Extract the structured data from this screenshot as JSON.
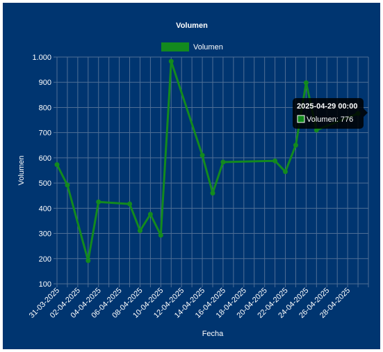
{
  "colors": {
    "background": "#003570",
    "series": "#138a1e",
    "grid": "#4f6f96",
    "text": "#ffffff",
    "tooltip_bg": "#000000"
  },
  "chart_data": {
    "type": "line",
    "title": "Volumen",
    "xlabel": "Fecha",
    "ylabel": "Volumen",
    "legend_position": "top",
    "grid": true,
    "ylim": [
      100,
      1000
    ],
    "y_ticks": [
      "100",
      "200",
      "300",
      "400",
      "500",
      "600",
      "700",
      "800",
      "900",
      "1.000"
    ],
    "x_range": [
      "2025-03-31",
      "2025-04-30"
    ],
    "x_ticks": [
      "31-03-2025",
      "02-04-2025",
      "04-04-2025",
      "06-04-2025",
      "08-04-2025",
      "10-04-2025",
      "12-04-2025",
      "14-04-2025",
      "16-04-2025",
      "18-04-2025",
      "20-04-2025",
      "22-04-2025",
      "24-04-2025",
      "26-04-2025",
      "28-04-2025"
    ],
    "series": [
      {
        "name": "Volumen",
        "points": [
          {
            "x": "2025-03-31",
            "y": 573
          },
          {
            "x": "2025-04-01",
            "y": 492
          },
          {
            "x": "2025-04-03",
            "y": 192
          },
          {
            "x": "2025-04-04",
            "y": 425
          },
          {
            "x": "2025-04-07",
            "y": 417
          },
          {
            "x": "2025-04-08",
            "y": 311
          },
          {
            "x": "2025-04-09",
            "y": 376
          },
          {
            "x": "2025-04-10",
            "y": 293
          },
          {
            "x": "2025-04-11",
            "y": 983
          },
          {
            "x": "2025-04-14",
            "y": 610
          },
          {
            "x": "2025-04-15",
            "y": 460
          },
          {
            "x": "2025-04-16",
            "y": 583
          },
          {
            "x": "2025-04-21",
            "y": 588
          },
          {
            "x": "2025-04-22",
            "y": 545
          },
          {
            "x": "2025-04-23",
            "y": 650
          },
          {
            "x": "2025-04-24",
            "y": 898
          },
          {
            "x": "2025-04-25",
            "y": 710
          },
          {
            "x": "2025-04-29",
            "y": 776
          }
        ]
      }
    ],
    "tooltip": {
      "title": "2025-04-29 00:00",
      "label": "Volumen: 776"
    }
  }
}
